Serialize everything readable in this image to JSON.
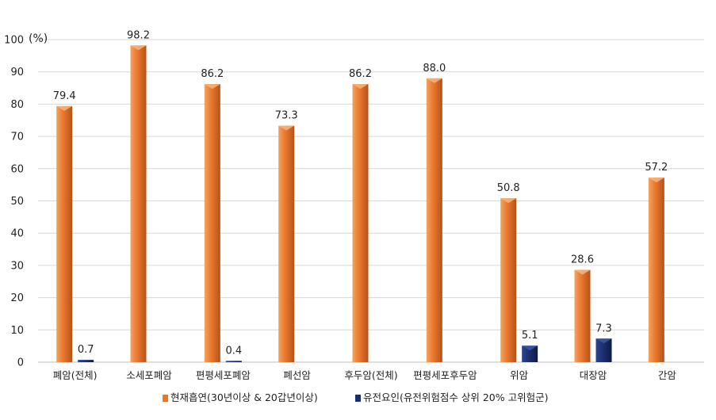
{
  "chart_data": {
    "type": "bar",
    "title": "",
    "xlabel": "",
    "ylabel": "",
    "y_unit": "(%)",
    "ylim": [
      0,
      100
    ],
    "yticks": [
      0,
      10,
      20,
      30,
      40,
      50,
      60,
      70,
      80,
      90,
      100
    ],
    "grid": true,
    "legend_position": "bottom",
    "categories": [
      "폐암(전체)",
      "소세포폐암",
      "편평세포폐암",
      "폐선암",
      "후두암(전체)",
      "편평세포후두암",
      "위암",
      "대장암",
      "간암"
    ],
    "series": [
      {
        "name": "현재흡연(30년이상  & 20갑년이상)",
        "color": "#e8762d",
        "values": [
          79.4,
          98.2,
          86.2,
          73.3,
          86.2,
          88.0,
          50.8,
          28.6,
          57.2
        ],
        "labels": [
          "79.4",
          "98.2",
          "86.2",
          "73.3",
          "86.2",
          "88.0",
          "50.8",
          "28.6",
          "57.2"
        ]
      },
      {
        "name": "유전요인(유전위험점수  상위  20%  고위험군)",
        "color": "#1b2d6b",
        "values": [
          0.7,
          null,
          0.4,
          null,
          null,
          null,
          5.1,
          7.3,
          null
        ],
        "labels": [
          "0.7",
          "",
          "0.4",
          "",
          "",
          "",
          "5.1",
          "7.3",
          ""
        ]
      }
    ]
  }
}
